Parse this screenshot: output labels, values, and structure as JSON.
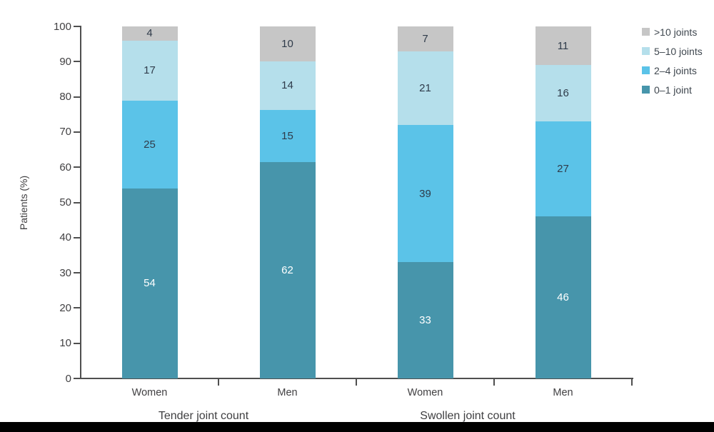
{
  "chart_data": {
    "type": "bar",
    "stacked": true,
    "title": "",
    "ylabel": "Patients (%)",
    "ylim": [
      0,
      100
    ],
    "ytick_step": 10,
    "yticks": [
      0,
      10,
      20,
      30,
      40,
      50,
      60,
      70,
      80,
      90,
      100
    ],
    "categories": [
      "Women",
      "Men",
      "Women",
      "Men"
    ],
    "groups": [
      {
        "label": "Tender joint count"
      },
      {
        "label": "Swollen joint count"
      }
    ],
    "series": [
      {
        "name": "0–1 joint",
        "color": "#4795ab",
        "label_color": "#ffffff",
        "values": [
          54,
          62,
          33,
          46
        ]
      },
      {
        "name": "2–4 joints",
        "color": "#5bc3e8",
        "label_color": "#2f3b4a",
        "values": [
          25,
          15,
          39,
          27
        ]
      },
      {
        "name": "5–10 joints",
        "color": "#b5dfeb",
        "label_color": "#2f3b4a",
        "values": [
          17,
          14,
          21,
          16
        ]
      },
      {
        "name": ">10 joints",
        "color": "#c6c6c6",
        "label_color": "#2f3b4a",
        "values": [
          4,
          10,
          7,
          11
        ]
      }
    ],
    "legend": [
      {
        "label": ">10 joints",
        "color": "#c6c6c6"
      },
      {
        "label": "5–10 joints",
        "color": "#b5dfeb"
      },
      {
        "label": "2–4 joints",
        "color": "#5bc3e8"
      },
      {
        "label": "0–1 joint",
        "color": "#4795ab"
      }
    ],
    "legend_position": "top-right",
    "grid": false,
    "colors": {
      "axis": "#4f4f4f",
      "tick_label": "#414042",
      "footer_bar": "#000000"
    }
  }
}
